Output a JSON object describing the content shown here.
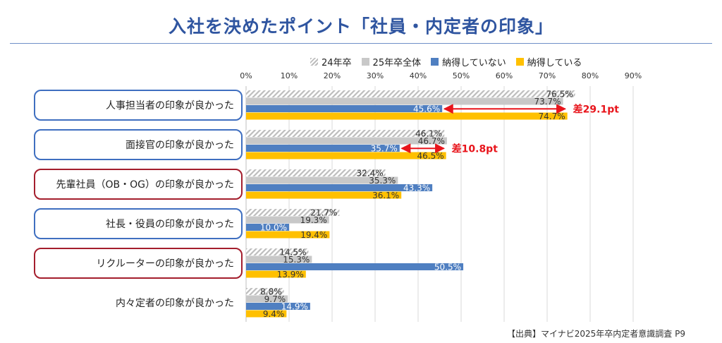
{
  "title": "入社を決めたポイント「社員・内定者の印象」",
  "legend": [
    {
      "label": "24年卒",
      "color": "#bdbdbd",
      "pattern": "hatched"
    },
    {
      "label": "25年卒全体",
      "color": "#c8c8c8"
    },
    {
      "label": "納得していない",
      "color": "#4f7fc1"
    },
    {
      "label": "納得している",
      "color": "#ffc000"
    }
  ],
  "colors": {
    "hatched": "#bdbdbd",
    "total": "#c8c8c8",
    "not_convinced": "#4f7fc1",
    "convinced": "#ffc000",
    "diff": "#e8141b",
    "blue_border": "#3f6fc0",
    "red_border": "#a41e2d"
  },
  "chart_data": {
    "type": "bar",
    "orientation": "horizontal",
    "xlim": [
      0,
      90
    ],
    "xticks": [
      "0%",
      "10%",
      "20%",
      "30%",
      "40%",
      "50%",
      "60%",
      "70%",
      "80%",
      "90%"
    ],
    "grid": true,
    "legend_position": "top",
    "categories": [
      "人事担当者の印象が良かった",
      "面接官の印象が良かった",
      "先輩社員（OB・OG）の印象が良かった",
      "社長・役員の印象が良かった",
      "リクルーターの印象が良かった",
      "内々定者の印象が良かった"
    ],
    "category_border": [
      "blue",
      "blue",
      "red",
      "blue",
      "red",
      "none"
    ],
    "series": [
      {
        "name": "24年卒",
        "values": [
          76.5,
          46.1,
          32.4,
          21.7,
          14.5,
          8.8
        ]
      },
      {
        "name": "25年卒全体",
        "values": [
          73.7,
          46.7,
          35.3,
          19.3,
          15.3,
          9.7
        ]
      },
      {
        "name": "納得していない",
        "values": [
          45.6,
          35.7,
          43.3,
          10.0,
          50.5,
          14.9
        ]
      },
      {
        "name": "納得している",
        "values": [
          74.7,
          46.5,
          36.1,
          19.4,
          13.9,
          9.4
        ]
      }
    ],
    "data_labels": [
      [
        "76.5%",
        "46.1%",
        "32.4%",
        "21.7%",
        "14.5%",
        "8.8%"
      ],
      [
        "73.7%",
        "46.7%",
        "35.3%",
        "19.3%",
        "15.3%",
        "9.7%"
      ],
      [
        "45.6%",
        "35.7%",
        "43.3%",
        "10.0%",
        "50.5%",
        "14.9%"
      ],
      [
        "74.7%",
        "46.5%",
        "36.1%",
        "19.4%",
        "13.9%",
        "9.4%"
      ]
    ],
    "annotations": [
      {
        "category_index": 0,
        "from": 45.6,
        "to": 74.7,
        "text": "差29.1pt"
      },
      {
        "category_index": 1,
        "from": 35.7,
        "to": 46.5,
        "text": "差10.8pt"
      }
    ]
  },
  "source": "【出典】マイナビ2025年卒内定者意識調査 P9"
}
